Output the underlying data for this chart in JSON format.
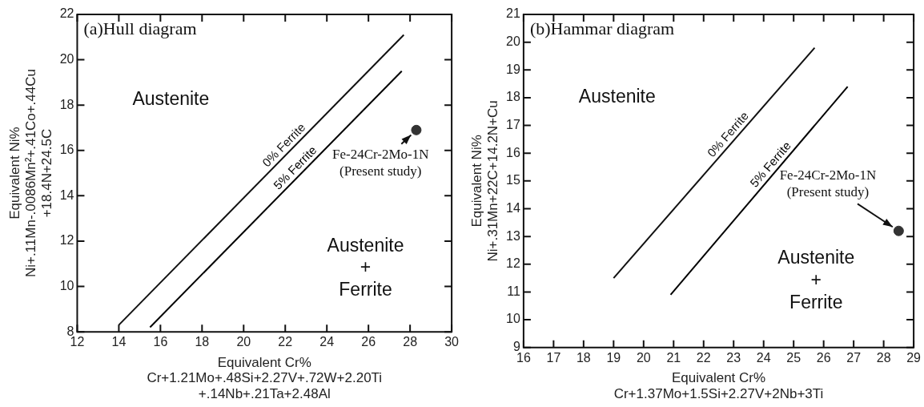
{
  "chart_data": [
    {
      "type": "line",
      "title": "(a)Hull diagram",
      "xlabel": "Equivalent Cr%\nCr+1.21Mo+.48Si+2.27V+.72W+2.20Ti\n+.14Nb+.21Ta+2.48Al",
      "ylabel": "Equivalent Ni%\nNi+.11Mn-.0086Mn²+.41Co+.44Cu\n+18.4N+24.5C",
      "xlim": [
        12,
        30
      ],
      "ylim": [
        8,
        22
      ],
      "xticks": [
        12,
        14,
        16,
        18,
        20,
        22,
        24,
        26,
        28,
        30
      ],
      "yticks": [
        8,
        10,
        12,
        14,
        16,
        18,
        20,
        22
      ],
      "grid": false,
      "series": [
        {
          "name": "0% Ferrite",
          "color": "#111111",
          "x": [
            14,
            27.7
          ],
          "values": [
            8.3,
            21.1
          ]
        },
        {
          "name": "5% Ferrite",
          "color": "#000000",
          "x": [
            15.5,
            27.6
          ],
          "values": [
            8.2,
            19.5
          ]
        },
        {
          "type": "scatter",
          "color": "#333333",
          "x": [
            28.3
          ],
          "values": [
            16.9
          ]
        }
      ],
      "annotations": [
        "Austenite",
        "Austenite\n+\nFerrite",
        {
          "text": "Fe-24Cr-2Mo-1N\n(Present study)",
          "x": 28.3,
          "y": 16.9
        }
      ]
    },
    {
      "type": "line",
      "title": "(b)Hammar diagram",
      "xlabel": "Equivalent Cr%\nCr+1.37Mo+1.5Si+2.27V+2Nb+3Ti",
      "ylabel": "Equivalent Ni%\nNi+.31Mn+22C+14.2N+Cu",
      "xlim": [
        16,
        29
      ],
      "ylim": [
        9,
        21
      ],
      "xticks": [
        16,
        17,
        18,
        19,
        20,
        21,
        22,
        23,
        24,
        25,
        26,
        27,
        28,
        29
      ],
      "yticks": [
        9,
        10,
        11,
        12,
        13,
        14,
        15,
        16,
        17,
        18,
        19,
        20,
        21
      ],
      "grid": false,
      "series": [
        {
          "name": "0% Ferrite",
          "color": "#111111",
          "x": [
            19,
            25.7
          ],
          "values": [
            11.5,
            19.8
          ]
        },
        {
          "name": "5% Ferrite",
          "color": "#000000",
          "x": [
            20.9,
            26.8
          ],
          "values": [
            10.9,
            18.4
          ]
        },
        {
          "type": "scatter",
          "color": "#333333",
          "x": [
            28.5
          ],
          "values": [
            13.2
          ]
        }
      ],
      "annotations": [
        "Austenite",
        "Austenite\n+\nFerrite",
        {
          "text": "Fe-24Cr-2Mo-1N\n(Present study)",
          "x": 28.5,
          "y": 13.2
        }
      ]
    }
  ]
}
